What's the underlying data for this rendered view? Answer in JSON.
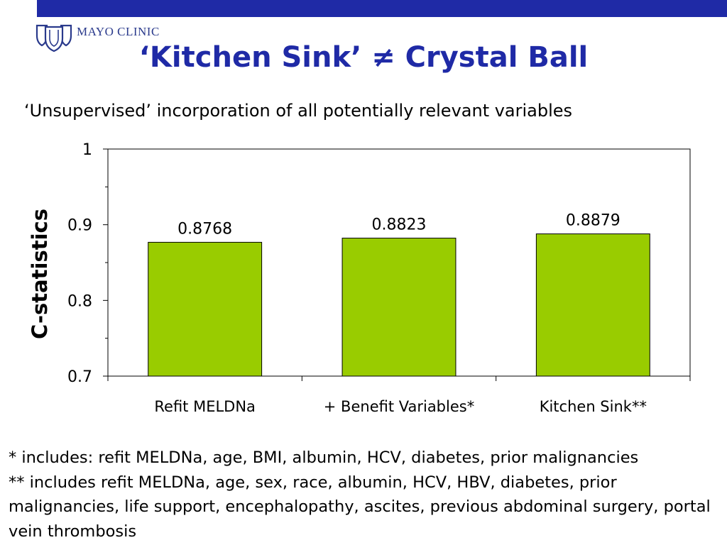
{
  "header": {
    "logo_text": "MAYO CLINIC",
    "title": "‘Kitchen Sink’ ≠ Crystal Ball",
    "subtitle": "‘Unsupervised’ incorporation of all potentially relevant variables",
    "band_color": "#1f2aa6",
    "title_color": "#1f2aa6"
  },
  "chart_data": {
    "type": "bar",
    "categories": [
      "Refit MELDNa",
      "+ Benefit Variables*",
      "Kitchen Sink**"
    ],
    "values": [
      0.8768,
      0.8823,
      0.8879
    ],
    "data_labels": [
      "0.8768",
      "0.8823",
      "0.8879"
    ],
    "ylabel": "C-statistics",
    "xlabel": "",
    "ylim": [
      0.7,
      1
    ],
    "yticks": [
      0.7,
      0.8,
      0.9,
      1
    ],
    "ytick_labels": [
      "0.7",
      "0.8",
      "0.9",
      "1"
    ],
    "bar_color": "#99cc00",
    "grid": false
  },
  "footnotes": [
    "* includes: refit MELDNa, age, BMI, albumin, HCV, diabetes, prior malignancies",
    "** includes refit MELDNa, age, sex, race, albumin, HCV, HBV, diabetes, prior malignancies, life support, encephalopathy, ascites, previous abdominal surgery, portal vein thrombosis"
  ]
}
